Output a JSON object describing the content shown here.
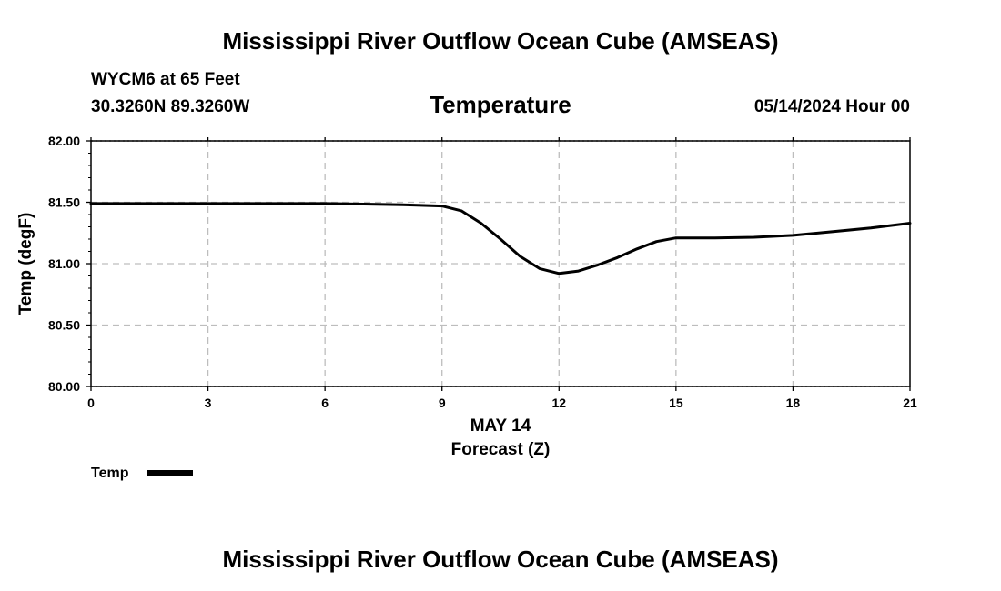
{
  "header": {
    "title": "Mississippi River Outflow Ocean Cube (AMSEAS)",
    "station": "WYCM6 at 65 Feet",
    "coords": "30.3260N  89.3260W",
    "date": "05/14/2024 Hour 00"
  },
  "footer": {
    "title": "Mississippi River Outflow Ocean Cube (AMSEAS)"
  },
  "chart_data": {
    "type": "line",
    "title": "Temperature",
    "xlabel": "Forecast (Z)",
    "xsublabel": "MAY 14",
    "ylabel": "Temp (degF)",
    "xlim": [
      0,
      21
    ],
    "ylim": [
      80.0,
      82.0
    ],
    "xticks": [
      0,
      3,
      6,
      9,
      12,
      15,
      18,
      21
    ],
    "yticks": [
      80.0,
      80.5,
      81.0,
      81.5,
      82.0
    ],
    "ytick_labels": [
      "80.00",
      "80.50",
      "81.00",
      "81.50",
      "82.00"
    ],
    "grid": true,
    "legend": "bottom-left",
    "series": [
      {
        "name": "Temp",
        "color": "#000000",
        "x": [
          0,
          3,
          6,
          7,
          8,
          9,
          9.5,
          10,
          10.5,
          11,
          11.5,
          12,
          12.5,
          13,
          13.5,
          14,
          14.5,
          15,
          16,
          17,
          18,
          19,
          20,
          21
        ],
        "y": [
          81.49,
          81.49,
          81.49,
          81.485,
          81.48,
          81.47,
          81.43,
          81.33,
          81.2,
          81.06,
          80.96,
          80.92,
          80.94,
          80.99,
          81.05,
          81.12,
          81.18,
          81.21,
          81.21,
          81.215,
          81.23,
          81.26,
          81.29,
          81.33
        ]
      }
    ]
  }
}
